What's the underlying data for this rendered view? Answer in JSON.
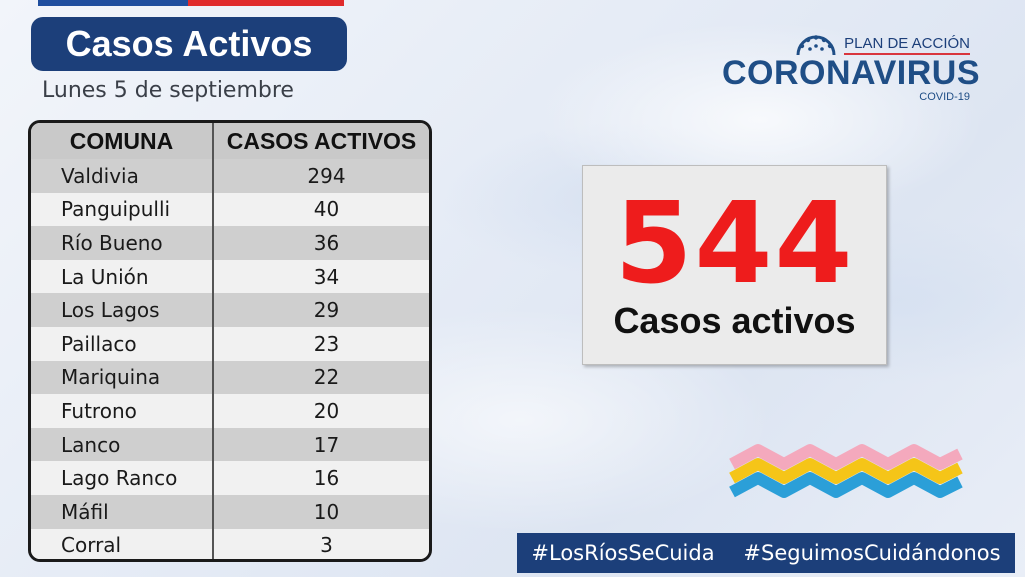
{
  "header": {
    "title": "Casos Activos",
    "date": "Lunes 5 de septiembre"
  },
  "table": {
    "headers": [
      "COMUNA",
      "CASOS ACTIVOS"
    ],
    "rows": [
      {
        "comuna": "Valdivia",
        "casos": "294"
      },
      {
        "comuna": "Panguipulli",
        "casos": "40"
      },
      {
        "comuna": "Río Bueno",
        "casos": "36"
      },
      {
        "comuna": "La Unión",
        "casos": "34"
      },
      {
        "comuna": "Los Lagos",
        "casos": "29"
      },
      {
        "comuna": "Paillaco",
        "casos": "23"
      },
      {
        "comuna": "Mariquina",
        "casos": "22"
      },
      {
        "comuna": "Futrono",
        "casos": "20"
      },
      {
        "comuna": "Lanco",
        "casos": "17"
      },
      {
        "comuna": "Lago Ranco",
        "casos": "16"
      },
      {
        "comuna": "Máfil",
        "casos": "10"
      },
      {
        "comuna": "Corral",
        "casos": "3"
      }
    ]
  },
  "logo": {
    "plan": "PLAN DE ACCIÓN",
    "main": "CORONAVIRUS",
    "sub": "COVID-19"
  },
  "total": {
    "value": "544",
    "label": "Casos activos"
  },
  "hashtags": [
    "#LosRíosSeCuida",
    "#SeguimosCuidándonos"
  ],
  "colors": {
    "navy": "#1c3f7a",
    "red_number": "#ee1c1c",
    "wave_pink": "#f4a9bd",
    "wave_yellow": "#f5c518",
    "wave_blue": "#2b9fd8"
  }
}
